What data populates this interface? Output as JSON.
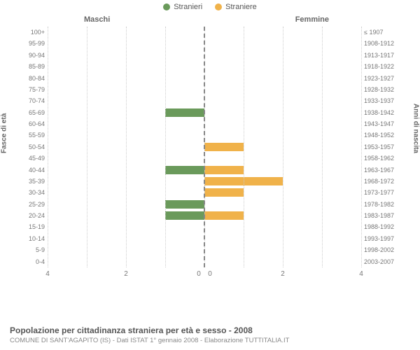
{
  "legend": {
    "male": {
      "label": "Stranieri",
      "color": "#6a9a5b"
    },
    "female": {
      "label": "Straniere",
      "color": "#f0b24a"
    }
  },
  "headers": {
    "left": "Maschi",
    "right": "Femmine"
  },
  "axes": {
    "y_left_title": "Fasce di età",
    "y_right_title": "Anni di nascita",
    "x_ticks": [
      4,
      2,
      0,
      0,
      2,
      4
    ],
    "x_max": 4
  },
  "chart": {
    "type": "population-pyramid",
    "plot_bg": "#ffffff",
    "grid_color": "#cccccc",
    "center_line_color": "#888888",
    "rows": [
      {
        "age": "100+",
        "birth": "≤ 1907",
        "m": 0,
        "f": 0
      },
      {
        "age": "95-99",
        "birth": "1908-1912",
        "m": 0,
        "f": 0
      },
      {
        "age": "90-94",
        "birth": "1913-1917",
        "m": 0,
        "f": 0
      },
      {
        "age": "85-89",
        "birth": "1918-1922",
        "m": 0,
        "f": 0
      },
      {
        "age": "80-84",
        "birth": "1923-1927",
        "m": 0,
        "f": 0
      },
      {
        "age": "75-79",
        "birth": "1928-1932",
        "m": 0,
        "f": 0
      },
      {
        "age": "70-74",
        "birth": "1933-1937",
        "m": 0,
        "f": 0
      },
      {
        "age": "65-69",
        "birth": "1938-1942",
        "m": 1,
        "f": 0
      },
      {
        "age": "60-64",
        "birth": "1943-1947",
        "m": 0,
        "f": 0
      },
      {
        "age": "55-59",
        "birth": "1948-1952",
        "m": 0,
        "f": 0
      },
      {
        "age": "50-54",
        "birth": "1953-1957",
        "m": 0,
        "f": 1
      },
      {
        "age": "45-49",
        "birth": "1958-1962",
        "m": 0,
        "f": 0
      },
      {
        "age": "40-44",
        "birth": "1963-1967",
        "m": 1,
        "f": 1
      },
      {
        "age": "35-39",
        "birth": "1968-1972",
        "m": 0,
        "f": 2
      },
      {
        "age": "30-34",
        "birth": "1973-1977",
        "m": 0,
        "f": 1
      },
      {
        "age": "25-29",
        "birth": "1978-1982",
        "m": 1,
        "f": 0
      },
      {
        "age": "20-24",
        "birth": "1983-1987",
        "m": 1,
        "f": 1
      },
      {
        "age": "15-19",
        "birth": "1988-1992",
        "m": 0,
        "f": 0
      },
      {
        "age": "10-14",
        "birth": "1993-1997",
        "m": 0,
        "f": 0
      },
      {
        "age": "5-9",
        "birth": "1998-2002",
        "m": 0,
        "f": 0
      },
      {
        "age": "0-4",
        "birth": "2003-2007",
        "m": 0,
        "f": 0
      }
    ]
  },
  "footer": {
    "title": "Popolazione per cittadinanza straniera per età e sesso - 2008",
    "subtitle": "COMUNE DI SANT'AGAPITO (IS) - Dati ISTAT 1° gennaio 2008 - Elaborazione TUTTITALIA.IT"
  }
}
